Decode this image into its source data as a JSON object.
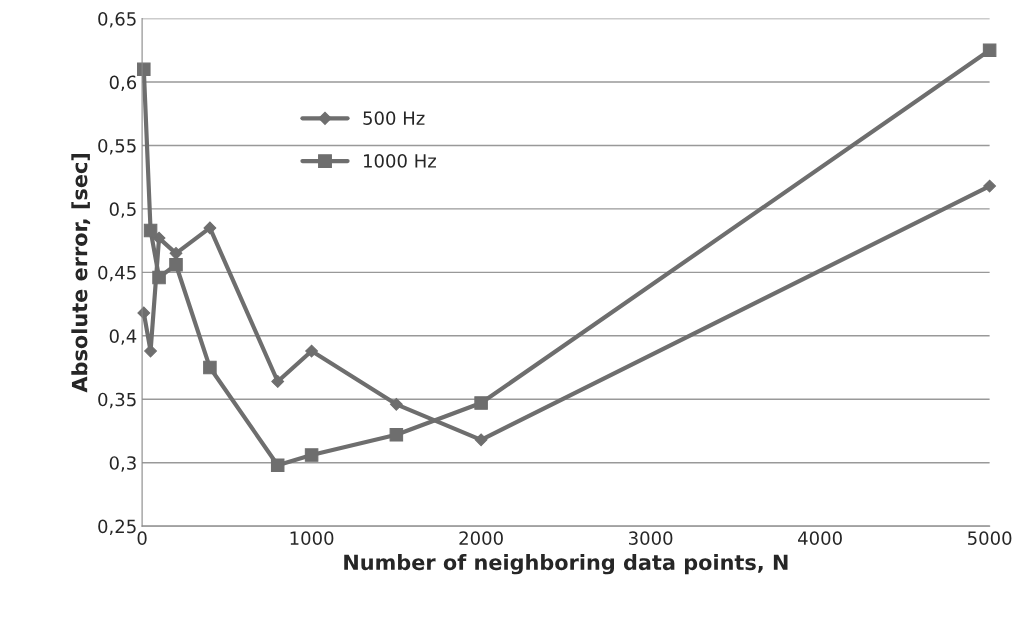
{
  "chart_data": {
    "type": "line",
    "xlabel": "Number of neighboring data points, N",
    "ylabel": "Absolute error, [sec]",
    "series": [
      {
        "name": "500 Hz",
        "color": "#6e6e6e",
        "marker": "diamond",
        "x": [
          10,
          50,
          100,
          200,
          400,
          800,
          1000,
          1500,
          2000,
          5000
        ],
        "values": [
          0.418,
          0.388,
          0.477,
          0.465,
          0.485,
          0.364,
          0.388,
          0.346,
          0.318,
          0.518
        ]
      },
      {
        "name": "1000 Hz",
        "color": "#6e6e6e",
        "marker": "square",
        "x": [
          10,
          50,
          100,
          200,
          400,
          800,
          1000,
          1500,
          2000,
          5000
        ],
        "values": [
          0.61,
          0.483,
          0.446,
          0.456,
          0.375,
          0.298,
          0.306,
          0.322,
          0.347,
          0.625
        ]
      }
    ],
    "xlim": [
      0,
      5000
    ],
    "xticks": [
      0,
      1000,
      2000,
      3000,
      4000,
      5000
    ],
    "ylim": [
      0.25,
      0.65
    ],
    "yticks": [
      {
        "value": 0.25,
        "label": "0,25"
      },
      {
        "value": 0.3,
        "label": "0,3"
      },
      {
        "value": 0.35,
        "label": "0,35"
      },
      {
        "value": 0.4,
        "label": "0,4"
      },
      {
        "value": 0.45,
        "label": "0,45"
      },
      {
        "value": 0.5,
        "label": "0,5"
      },
      {
        "value": 0.55,
        "label": "0,55"
      },
      {
        "value": 0.6,
        "label": "0,6"
      },
      {
        "value": 0.65,
        "label": "0,65"
      }
    ],
    "grid": "y",
    "legend": "top left",
    "line_style": "solid"
  }
}
